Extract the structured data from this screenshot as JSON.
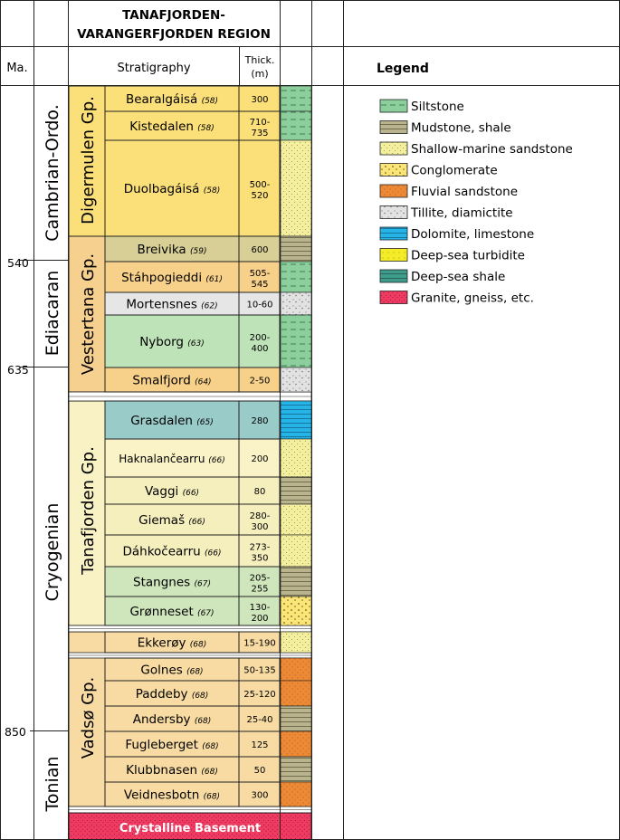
{
  "header": {
    "region_line1": "TANAFJORDEN-",
    "region_line2": "VARANGERFJORDEN REGION",
    "age_label": "Ma.",
    "strat_label": "Stratigraphy",
    "thick_label_1": "Thick.",
    "thick_label_2": "(m)"
  },
  "legend": {
    "title": "Legend",
    "items": [
      {
        "key": "silt",
        "label": "Siltstone",
        "color": "#8ccf9d"
      },
      {
        "key": "mud",
        "label": "Mudstone, shale",
        "color": "#b9b48e"
      },
      {
        "key": "ssand",
        "label": "Shallow-marine sandstone",
        "color": "#f3ef9f"
      },
      {
        "key": "cong",
        "label": "Conglomerate",
        "color": "#fbe577"
      },
      {
        "key": "fluv",
        "label": "Fluvial sandstone",
        "color": "#ee8a36"
      },
      {
        "key": "till",
        "label": "Tillite, diamictite",
        "color": "#e2e2e2"
      },
      {
        "key": "dolo",
        "label": "Dolomite, limestone",
        "color": "#26b3e6"
      },
      {
        "key": "turb",
        "label": "Deep-sea turbidite",
        "color": "#f3ec27"
      },
      {
        "key": "dshale",
        "label": "Deep-sea shale",
        "color": "#3f9b8c"
      },
      {
        "key": "gran",
        "label": "Granite, gneiss, etc.",
        "color": "#ef3a62"
      }
    ]
  },
  "ages": [
    "540",
    "635",
    "850"
  ],
  "periods": [
    "Cambrian-Ordo.",
    "Ediacaran",
    "Cryogenian",
    "Tonian"
  ],
  "groups": [
    "Digermulen Gp.",
    "Vestertana Gp.",
    "Tanafjorden Gp.",
    "Vadsø Gp."
  ],
  "colors": {
    "digermulen": "#fbe07a",
    "vestertana": "#f6d08f",
    "tanafjorden": "#f9f2c4",
    "vadso": "#f7dba3",
    "basement": "#ee3b66",
    "grid": "#222222"
  },
  "formations": [
    {
      "name": "Bearalgáisá",
      "ref": "(58)",
      "thick": [
        "300"
      ],
      "color": "#fbe07a",
      "litho": [
        "silt"
      ]
    },
    {
      "name": "Kistedalen",
      "ref": "(58)",
      "thick": [
        "710-",
        "735"
      ],
      "color": "#fbe07a",
      "litho": [
        "silt"
      ]
    },
    {
      "name": "Duolbagáisá",
      "ref": "(58)",
      "thick": [
        "500-",
        "520"
      ],
      "color": "#fbe07a",
      "litho": [
        "ssand"
      ]
    },
    {
      "name": "Breivika",
      "ref": "(59)",
      "thick": [
        "600"
      ],
      "color": "#d8cf96",
      "litho": [
        "mud"
      ]
    },
    {
      "name": "Stáhpogieddi",
      "ref": "(61)",
      "thick": [
        "505-",
        "545"
      ],
      "color": "#f7d089",
      "litho": [
        "silt"
      ]
    },
    {
      "name": "Mortensnes",
      "ref": "(62)",
      "thick": [
        "10-60"
      ],
      "color": "#e6e6e6",
      "litho": [
        "till"
      ]
    },
    {
      "name": "Nyborg",
      "ref": "(63)",
      "thick": [
        "200-",
        "400"
      ],
      "color": "#bfe3b8",
      "litho": [
        "silt"
      ]
    },
    {
      "name": "Smalfjord",
      "ref": "(64)",
      "thick": [
        "2-50"
      ],
      "color": "#f7d089",
      "litho": [
        "till"
      ]
    },
    {
      "name": "Grasdalen",
      "ref": "(65)",
      "thick": [
        "280"
      ],
      "color": "#99cbc9",
      "litho": [
        "dolo"
      ]
    },
    {
      "name": "Haknalančearru",
      "ref": "(66)",
      "thick": [
        "200"
      ],
      "color": "#faf3c7",
      "litho": [
        "ssand"
      ]
    },
    {
      "name": "Vaggi",
      "ref": "(66)",
      "thick": [
        "80"
      ],
      "color": "#f5eebd",
      "litho": [
        "mud"
      ]
    },
    {
      "name": "Giemaš",
      "ref": "(66)",
      "thick": [
        "280-",
        "300"
      ],
      "color": "#f5eebd",
      "litho": [
        "ssand"
      ]
    },
    {
      "name": "Dáhkočearru",
      "ref": "(66)",
      "thick": [
        "273-",
        "350"
      ],
      "color": "#f5eebd",
      "litho": [
        "ssand"
      ]
    },
    {
      "name": "Stangnes",
      "ref": "(67)",
      "thick": [
        "205-",
        "255"
      ],
      "color": "#cfe6bd",
      "litho": [
        "mud"
      ]
    },
    {
      "name": "Grønneset",
      "ref": "(67)",
      "thick": [
        "130-",
        "200"
      ],
      "color": "#cfe6bd",
      "litho": [
        "cong"
      ]
    },
    {
      "name": "Ekkerøy",
      "ref": "(68)",
      "thick": [
        "15-190"
      ],
      "color": "#f7dba3",
      "litho": [
        "ssand"
      ]
    },
    {
      "name": "Golnes",
      "ref": "(68)",
      "thick": [
        "50-135"
      ],
      "color": "#f7dba3",
      "litho": [
        "fluv"
      ]
    },
    {
      "name": "Paddeby",
      "ref": "(68)",
      "thick": [
        "25-120"
      ],
      "color": "#f7dba3",
      "litho": [
        "fluv"
      ]
    },
    {
      "name": "Andersby",
      "ref": "(68)",
      "thick": [
        "25-40"
      ],
      "color": "#f7dba3",
      "litho": [
        "mud"
      ]
    },
    {
      "name": "Fugleberget",
      "ref": "(68)",
      "thick": [
        "125"
      ],
      "color": "#f7dba3",
      "litho": [
        "fluv"
      ]
    },
    {
      "name": "Klubbnasen",
      "ref": "(68)",
      "thick": [
        "50"
      ],
      "color": "#f7dba3",
      "litho": [
        "mud"
      ]
    },
    {
      "name": "Veidnesbotn",
      "ref": "(68)",
      "thick": [
        "300"
      ],
      "color": "#f7dba3",
      "litho": [
        "fluv"
      ]
    }
  ],
  "basement_label": "Crystalline Basement"
}
